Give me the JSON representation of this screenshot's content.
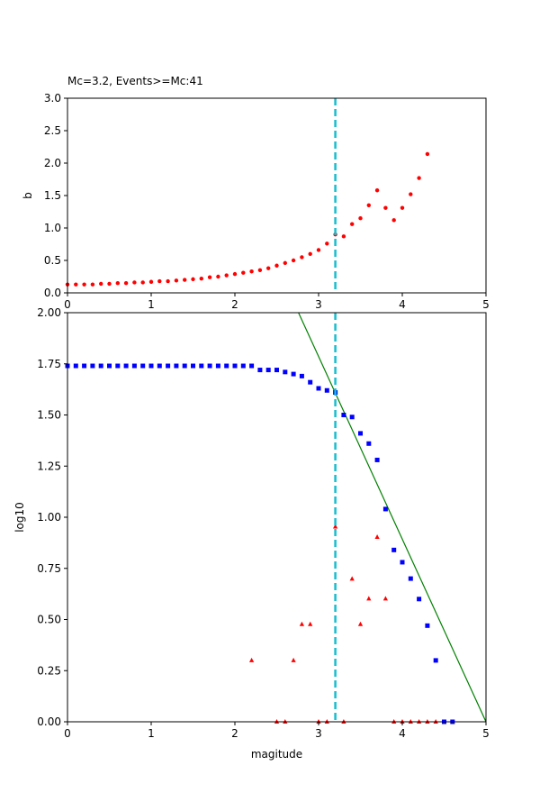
{
  "colors": {
    "b_points": "#ff0000",
    "cumulative_points": "#0000ff",
    "noncumulative_points": "#ff0000",
    "fit_line": "#008000",
    "mc_line": "#17becf"
  },
  "chart_data": [
    {
      "type": "scatter",
      "title": "Mc=3.2, Events>=Mc:41",
      "xlabel": "",
      "ylabel": "b",
      "xlim": [
        0,
        5
      ],
      "ylim": [
        0,
        3
      ],
      "xticks": [
        "0",
        "1",
        "2",
        "3",
        "4",
        "5"
      ],
      "yticks": [
        "0.0",
        "0.5",
        "1.0",
        "1.5",
        "2.0",
        "2.5",
        "3.0"
      ],
      "grid": false,
      "mc": 3.2,
      "series": [
        {
          "marker": "circle",
          "x": [
            0.0,
            0.1,
            0.2,
            0.3,
            0.4,
            0.5,
            0.6,
            0.7,
            0.8,
            0.9,
            1.0,
            1.1,
            1.2,
            1.3,
            1.4,
            1.5,
            1.6,
            1.7,
            1.8,
            1.9,
            2.0,
            2.1,
            2.2,
            2.3,
            2.4,
            2.5,
            2.6,
            2.7,
            2.8,
            2.9,
            3.0,
            3.1,
            3.2,
            3.3,
            3.4,
            3.5,
            3.6,
            3.7,
            3.8,
            3.9,
            4.0,
            4.1,
            4.2,
            4.3
          ],
          "y": [
            0.13,
            0.13,
            0.13,
            0.13,
            0.14,
            0.14,
            0.15,
            0.15,
            0.16,
            0.16,
            0.17,
            0.18,
            0.18,
            0.19,
            0.2,
            0.21,
            0.22,
            0.24,
            0.25,
            0.27,
            0.29,
            0.31,
            0.33,
            0.35,
            0.38,
            0.42,
            0.46,
            0.5,
            0.55,
            0.6,
            0.66,
            0.76,
            0.9,
            0.87,
            1.06,
            1.15,
            1.35,
            1.58,
            1.31,
            1.12,
            1.31,
            1.52,
            1.77,
            2.14
          ]
        }
      ]
    },
    {
      "type": "scatter",
      "title": "",
      "xlabel": "magitude",
      "ylabel": "log10",
      "xlim": [
        0,
        5
      ],
      "ylim": [
        0,
        2
      ],
      "xticks": [
        "0",
        "1",
        "2",
        "3",
        "4",
        "5"
      ],
      "yticks": [
        "0.00",
        "0.25",
        "0.50",
        "0.75",
        "1.00",
        "1.25",
        "1.50",
        "1.75",
        "2.00"
      ],
      "grid": false,
      "mc": 3.2,
      "fit_line": {
        "x": [
          2.76,
          5.0
        ],
        "y": [
          2.0,
          0.0
        ]
      },
      "series": [
        {
          "marker": "square",
          "x": [
            0.0,
            0.1,
            0.2,
            0.3,
            0.4,
            0.5,
            0.6,
            0.7,
            0.8,
            0.9,
            1.0,
            1.1,
            1.2,
            1.3,
            1.4,
            1.5,
            1.6,
            1.7,
            1.8,
            1.9,
            2.0,
            2.1,
            2.2,
            2.3,
            2.4,
            2.5,
            2.6,
            2.7,
            2.8,
            2.9,
            3.0,
            3.1,
            3.2,
            3.3,
            3.4,
            3.5,
            3.6,
            3.7,
            3.8,
            3.9,
            4.0,
            4.1,
            4.2,
            4.3,
            4.4,
            4.5,
            4.6
          ],
          "y": [
            1.74,
            1.74,
            1.74,
            1.74,
            1.74,
            1.74,
            1.74,
            1.74,
            1.74,
            1.74,
            1.74,
            1.74,
            1.74,
            1.74,
            1.74,
            1.74,
            1.74,
            1.74,
            1.74,
            1.74,
            1.74,
            1.74,
            1.74,
            1.72,
            1.72,
            1.72,
            1.71,
            1.7,
            1.69,
            1.66,
            1.63,
            1.62,
            1.61,
            1.5,
            1.49,
            1.41,
            1.36,
            1.28,
            1.04,
            0.84,
            0.78,
            0.7,
            0.6,
            0.47,
            0.3,
            0.0,
            0.0
          ]
        },
        {
          "marker": "triangle",
          "x": [
            2.2,
            2.5,
            2.6,
            2.7,
            2.8,
            2.9,
            3.0,
            3.1,
            3.2,
            3.3,
            3.4,
            3.5,
            3.6,
            3.7,
            3.8,
            3.9,
            4.0,
            4.1,
            4.2,
            4.3,
            4.4
          ],
          "y": [
            0.3,
            0.0,
            0.0,
            0.3,
            0.477,
            0.477,
            0.0,
            0.0,
            0.954,
            0.0,
            0.699,
            0.477,
            0.602,
            0.903,
            0.602,
            0.0,
            0.0,
            0.0,
            0.0,
            0.0,
            0.0
          ]
        }
      ]
    }
  ]
}
